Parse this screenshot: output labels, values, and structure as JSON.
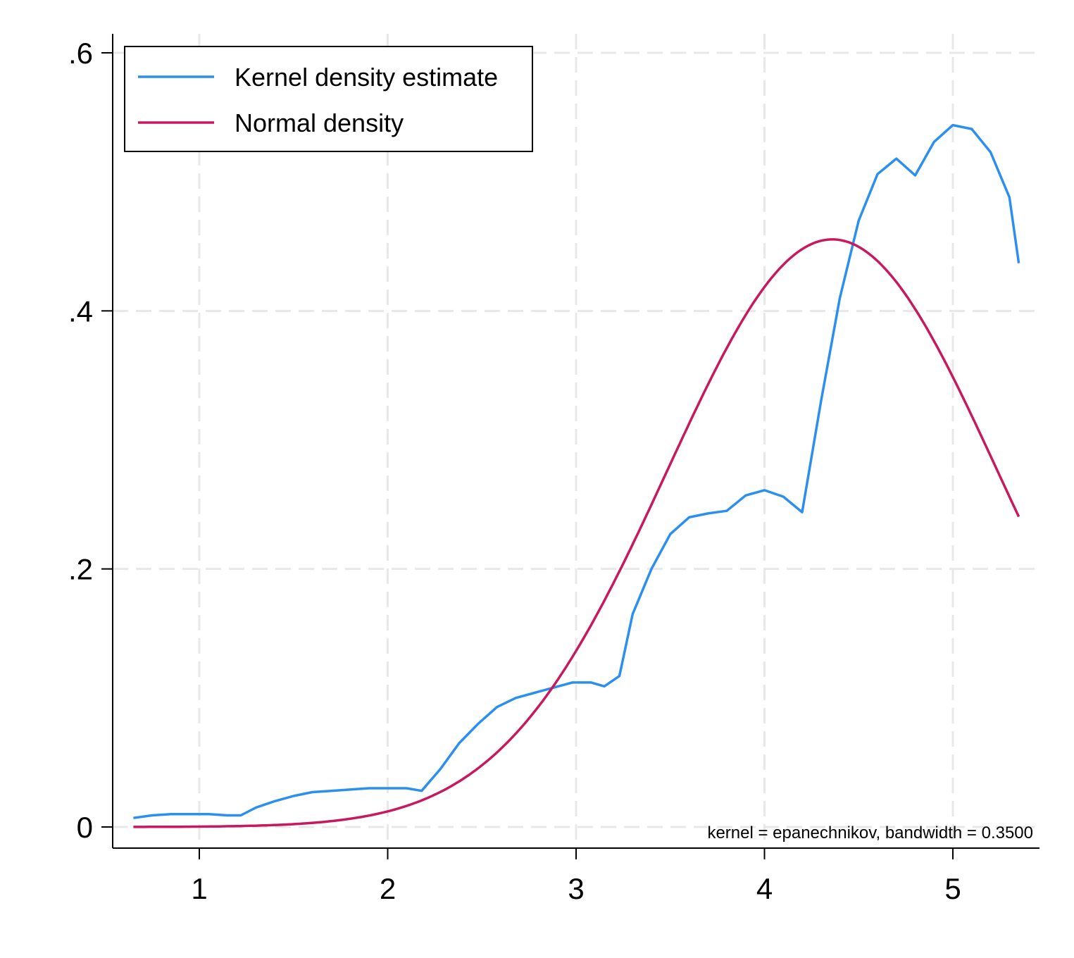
{
  "chart_data": {
    "type": "line",
    "title": "",
    "xlabel": "",
    "ylabel": "",
    "xlim": [
      0.65,
      5.35
    ],
    "ylim": [
      0,
      0.6
    ],
    "xticks": [
      1,
      2,
      3,
      4,
      5
    ],
    "xtick_labels": [
      "1",
      "2",
      "3",
      "4",
      "5"
    ],
    "yticks": [
      0,
      0.2,
      0.4,
      0.6
    ],
    "ytick_labels": [
      "0",
      ".2",
      ".4",
      ".6"
    ],
    "grid": true,
    "legend_position": "top-left",
    "note": "kernel = epanechnikov, bandwidth = 0.3500",
    "series": [
      {
        "name": "Kernel density estimate",
        "color": "#2b8ff0",
        "x": [
          0.65,
          0.75,
          0.85,
          0.95,
          1.05,
          1.15,
          1.22,
          1.3,
          1.4,
          1.5,
          1.6,
          1.7,
          1.8,
          1.9,
          2.0,
          2.1,
          2.18,
          2.28,
          2.38,
          2.48,
          2.58,
          2.68,
          2.78,
          2.88,
          2.98,
          3.08,
          3.15,
          3.23,
          3.3,
          3.4,
          3.5,
          3.6,
          3.7,
          3.8,
          3.9,
          4.0,
          4.1,
          4.2,
          4.3,
          4.4,
          4.5,
          4.6,
          4.7,
          4.8,
          4.9,
          5.0,
          5.1,
          5.2,
          5.3,
          5.35
        ],
        "y": [
          0.007,
          0.009,
          0.01,
          0.01,
          0.01,
          0.009,
          0.009,
          0.015,
          0.02,
          0.024,
          0.027,
          0.028,
          0.029,
          0.03,
          0.03,
          0.03,
          0.028,
          0.045,
          0.065,
          0.08,
          0.093,
          0.1,
          0.104,
          0.108,
          0.112,
          0.112,
          0.109,
          0.117,
          0.165,
          0.2,
          0.227,
          0.24,
          0.243,
          0.245,
          0.257,
          0.261,
          0.256,
          0.244,
          0.33,
          0.41,
          0.47,
          0.506,
          0.518,
          0.505,
          0.531,
          0.544,
          0.541,
          0.523,
          0.488,
          0.437
        ]
      },
      {
        "name": "Normal density",
        "color": "#c8195e",
        "mean": 4.36,
        "sd": 0.876
      }
    ]
  }
}
